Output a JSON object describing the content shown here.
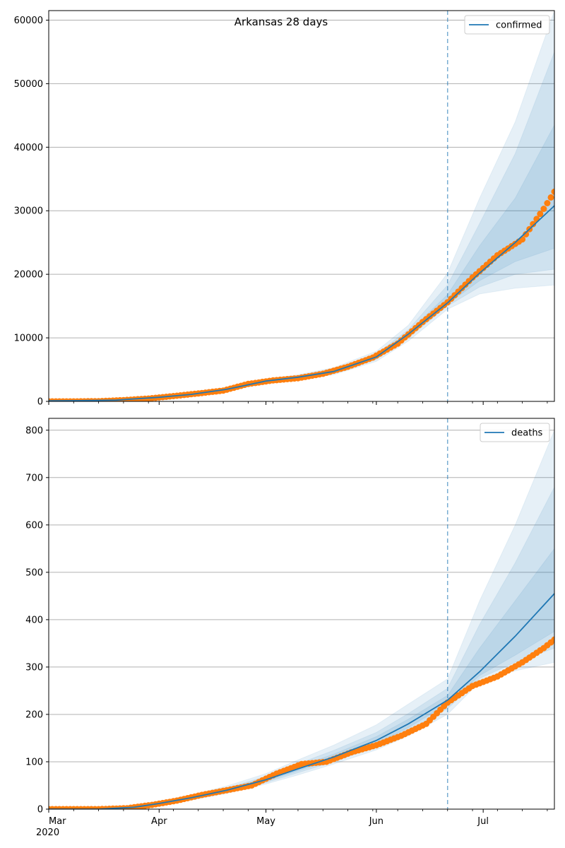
{
  "colors": {
    "model_line": "#1f77b4",
    "band": "#1f77b4",
    "observed": "#ff7f0e",
    "grid": "#b0b0b0",
    "vline": "#1f77b4"
  },
  "chart_data": [
    {
      "type": "line",
      "title": "Arkansas 28 days",
      "legend_position": "top-right",
      "grid": "horizontal",
      "xlim": [
        "2020-03-01",
        "2020-07-21"
      ],
      "x_ticks": [
        {
          "date": "2020-03-01",
          "label": "Mar",
          "sublabel": "2020"
        },
        {
          "date": "2020-04-01",
          "label": "Apr"
        },
        {
          "date": "2020-05-01",
          "label": "May"
        },
        {
          "date": "2020-06-01",
          "label": "Jun"
        },
        {
          "date": "2020-07-01",
          "label": "Jul"
        }
      ],
      "ylim": [
        0,
        61500
      ],
      "y_ticks": [
        0,
        10000,
        20000,
        30000,
        40000,
        50000,
        60000
      ],
      "vline_date": "2020-06-21",
      "model": {
        "name": "confirmed",
        "x": [
          "2020-03-01",
          "2020-03-10",
          "2020-03-20",
          "2020-04-01",
          "2020-04-10",
          "2020-04-20",
          "2020-05-01",
          "2020-05-10",
          "2020-05-20",
          "2020-06-01",
          "2020-06-10",
          "2020-06-21",
          "2020-06-30",
          "2020-07-10",
          "2020-07-21"
        ],
        "values": [
          100,
          120,
          200,
          650,
          1100,
          1900,
          3200,
          3800,
          4700,
          7000,
          10600,
          15500,
          20200,
          25000,
          30800
        ],
        "bands": [
          {
            "lower": [
              100,
              115,
              190,
              610,
              1040,
              1780,
              2950,
              3450,
              4200,
              6300,
              9500,
              14500,
              16900,
              17800,
              18300
            ],
            "upper": [
              100,
              125,
              210,
              700,
              1170,
              2050,
              3500,
              4200,
              5300,
              7900,
              12000,
              20200,
              32000,
              44000,
              61500
            ]
          },
          {
            "lower": [
              100,
              118,
              194,
              625,
              1060,
              1830,
              3050,
              3600,
              4400,
              6600,
              10000,
              15000,
              18000,
              20000,
              20800
            ],
            "upper": [
              100,
              122,
              206,
              675,
              1130,
              1960,
              3350,
              4000,
              5000,
              7450,
              11300,
              18300,
              28000,
              39000,
              55000
            ]
          },
          {
            "lower": [
              100,
              119,
              197,
              638,
              1080,
              1870,
              3130,
              3700,
              4570,
              6830,
              10300,
              15300,
              19000,
              22000,
              24100
            ],
            "upper": [
              100,
              121,
              203,
              662,
              1115,
              1930,
              3270,
              3900,
              4830,
              7170,
              10900,
              16800,
              24500,
              32000,
              43500
            ]
          }
        ]
      },
      "observed": {
        "x": [
          "2020-03-01",
          "2020-03-08",
          "2020-03-15",
          "2020-03-22",
          "2020-03-29",
          "2020-04-05",
          "2020-04-12",
          "2020-04-19",
          "2020-04-26",
          "2020-05-03",
          "2020-05-10",
          "2020-05-17",
          "2020-05-24",
          "2020-05-31",
          "2020-06-07",
          "2020-06-14",
          "2020-06-21",
          "2020-06-28",
          "2020-07-05",
          "2020-07-12",
          "2020-07-18",
          "2020-07-21"
        ],
        "values": [
          0,
          0,
          30,
          200,
          450,
          830,
          1250,
          1700,
          2750,
          3300,
          3650,
          4350,
          5450,
          6900,
          9100,
          12500,
          15600,
          19500,
          23000,
          25500,
          30300,
          33000
        ]
      }
    },
    {
      "type": "line",
      "title": "",
      "legend_position": "top-right",
      "grid": "horizontal",
      "xlim": [
        "2020-03-01",
        "2020-07-21"
      ],
      "x_ticks": [
        {
          "date": "2020-03-01",
          "label": "Mar",
          "sublabel": "2020"
        },
        {
          "date": "2020-04-01",
          "label": "Apr"
        },
        {
          "date": "2020-05-01",
          "label": "May"
        },
        {
          "date": "2020-06-01",
          "label": "Jun"
        },
        {
          "date": "2020-07-01",
          "label": "Jul"
        }
      ],
      "ylim": [
        0,
        825
      ],
      "y_ticks": [
        0,
        100,
        200,
        300,
        400,
        500,
        600,
        700,
        800
      ],
      "vline_date": "2020-06-21",
      "model": {
        "name": "deaths",
        "x": [
          "2020-03-01",
          "2020-03-15",
          "2020-03-25",
          "2020-04-01",
          "2020-04-10",
          "2020-04-20",
          "2020-05-01",
          "2020-05-10",
          "2020-05-20",
          "2020-06-01",
          "2020-06-10",
          "2020-06-21",
          "2020-06-30",
          "2020-07-10",
          "2020-07-21"
        ],
        "values": [
          0,
          0,
          4,
          12,
          24,
          40,
          62,
          85,
          110,
          145,
          180,
          230,
          290,
          365,
          455
        ],
        "bands": [
          {
            "lower": [
              0,
              0,
              3,
              9,
              19,
              33,
              53,
              72,
              95,
              125,
              155,
              200,
              268,
              292,
              310
            ],
            "upper": [
              0,
              0,
              6,
              16,
              30,
              49,
              75,
              104,
              135,
              178,
              222,
              275,
              440,
              600,
              800
            ]
          },
          {
            "lower": [
              0,
              0,
              3,
              10,
              21,
              35,
              56,
              77,
              100,
              132,
              165,
              212,
              276,
              310,
              340
            ],
            "upper": [
              0,
              0,
              5,
              14,
              27,
              45,
              69,
              96,
              124,
              162,
              202,
              255,
              390,
              520,
              680
            ]
          },
          {
            "lower": [
              0,
              0,
              4,
              11,
              22,
              37,
              59,
              81,
              105,
              138,
              172,
              222,
              282,
              325,
              375
            ],
            "upper": [
              0,
              0,
              5,
              13,
              26,
              43,
              66,
              90,
              116,
              153,
              190,
              240,
              340,
              440,
              550
            ]
          }
        ]
      },
      "observed": {
        "x": [
          "2020-03-01",
          "2020-03-15",
          "2020-03-23",
          "2020-03-30",
          "2020-04-06",
          "2020-04-13",
          "2020-04-20",
          "2020-04-27",
          "2020-05-04",
          "2020-05-11",
          "2020-05-18",
          "2020-05-25",
          "2020-06-01",
          "2020-06-08",
          "2020-06-15",
          "2020-06-21",
          "2020-06-28",
          "2020-07-05",
          "2020-07-12",
          "2020-07-18",
          "2020-07-21"
        ],
        "values": [
          0,
          0,
          2,
          9,
          18,
          30,
          40,
          50,
          75,
          95,
          100,
          120,
          135,
          155,
          180,
          225,
          260,
          280,
          310,
          340,
          358
        ]
      }
    }
  ]
}
